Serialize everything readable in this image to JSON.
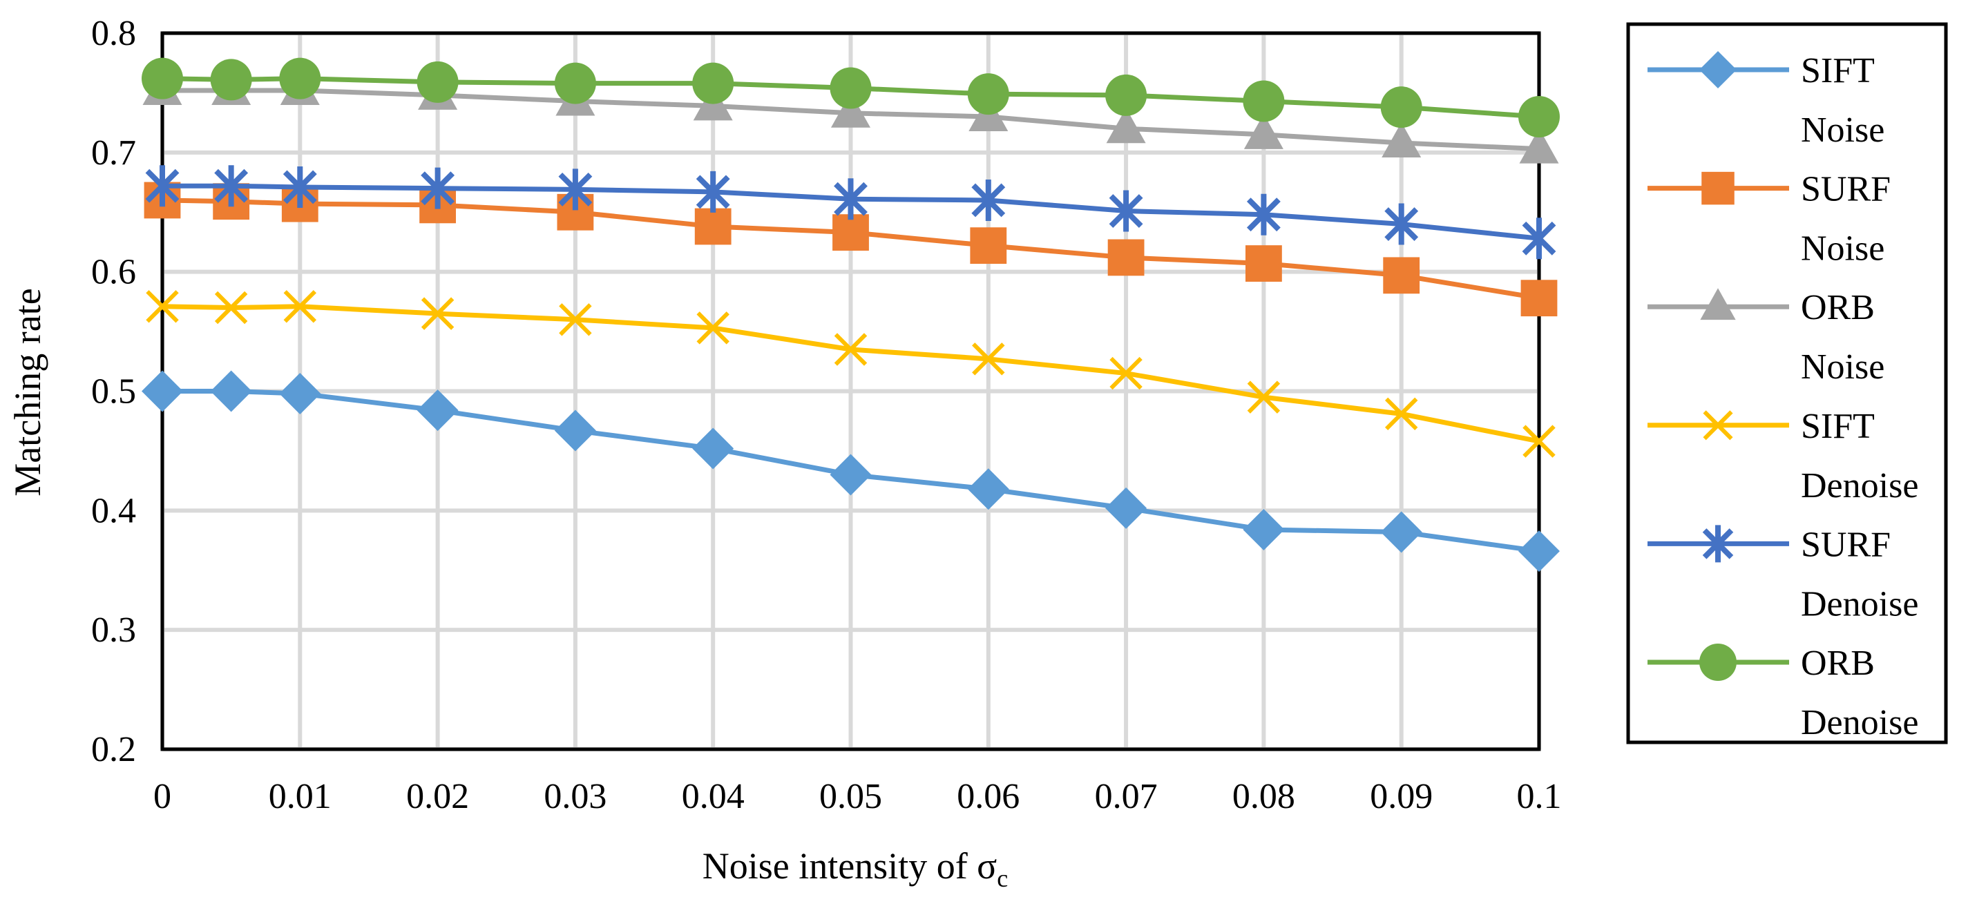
{
  "chart_data": {
    "type": "line",
    "title": "",
    "xlabel": "Noise intensity of σ",
    "xlabel_subscript": "c",
    "ylabel": "Matching rate",
    "x": [
      0,
      0.005,
      0.01,
      0.02,
      0.03,
      0.04,
      0.05,
      0.06,
      0.07,
      0.08,
      0.09,
      0.1
    ],
    "xticks": [
      0,
      0.01,
      0.02,
      0.03,
      0.04,
      0.05,
      0.06,
      0.07,
      0.08,
      0.09,
      0.1
    ],
    "xtick_labels": [
      "0",
      "0.01",
      "0.02",
      "0.03",
      "0.04",
      "0.05",
      "0.06",
      "0.07",
      "0.08",
      "0.09",
      "0.1"
    ],
    "xlim": [
      0,
      0.1
    ],
    "ylim": [
      0.2,
      0.8
    ],
    "yticks": [
      0.2,
      0.3,
      0.4,
      0.5,
      0.6,
      0.7,
      0.8
    ],
    "ytick_labels": [
      "0.2",
      "0.3",
      "0.4",
      "0.5",
      "0.6",
      "0.7",
      "0.8"
    ],
    "grid": true,
    "legend_position": "right",
    "series": [
      {
        "name": "SIFT Noise",
        "legend_lines": [
          "SIFT",
          "Noise"
        ],
        "color": "#5B9BD5",
        "marker": "diamond",
        "values": [
          0.5,
          0.5,
          0.498,
          0.484,
          0.467,
          0.452,
          0.43,
          0.418,
          0.402,
          0.384,
          0.382,
          0.366
        ]
      },
      {
        "name": "SURF Noise",
        "legend_lines": [
          "SURF",
          "Noise"
        ],
        "color": "#ED7D31",
        "marker": "square",
        "values": [
          0.66,
          0.659,
          0.657,
          0.656,
          0.65,
          0.638,
          0.633,
          0.622,
          0.612,
          0.607,
          0.597,
          0.578
        ]
      },
      {
        "name": "ORB Noise",
        "legend_lines": [
          "ORB",
          "Noise"
        ],
        "color": "#A5A5A5",
        "marker": "triangle",
        "values": [
          0.752,
          0.752,
          0.752,
          0.748,
          0.743,
          0.739,
          0.733,
          0.73,
          0.72,
          0.715,
          0.708,
          0.703
        ]
      },
      {
        "name": "SIFT Denoise",
        "legend_lines": [
          "SIFT",
          "Denoise"
        ],
        "color": "#FFC000",
        "marker": "x",
        "values": [
          0.571,
          0.57,
          0.571,
          0.565,
          0.56,
          0.553,
          0.535,
          0.527,
          0.515,
          0.495,
          0.481,
          0.458
        ]
      },
      {
        "name": "SURF Denoise",
        "legend_lines": [
          "SURF",
          "Denoise"
        ],
        "color": "#4472C4",
        "marker": "star",
        "values": [
          0.672,
          0.672,
          0.671,
          0.67,
          0.669,
          0.667,
          0.661,
          0.66,
          0.651,
          0.648,
          0.64,
          0.628
        ]
      },
      {
        "name": "ORB Denoise",
        "legend_lines": [
          "ORB",
          "Denoise"
        ],
        "color": "#70AD47",
        "marker": "circle",
        "values": [
          0.762,
          0.761,
          0.762,
          0.759,
          0.758,
          0.758,
          0.754,
          0.749,
          0.748,
          0.743,
          0.738,
          0.73
        ]
      }
    ]
  }
}
